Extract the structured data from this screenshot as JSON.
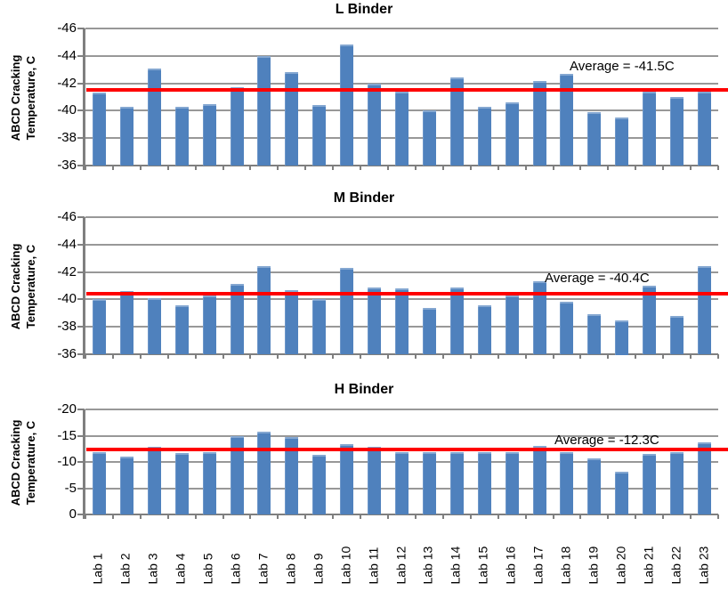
{
  "colors": {
    "bar": "#4F81BD",
    "average_line": "#FF0000",
    "gridline": "#989898",
    "axis": "#7F7F7F",
    "text": "#000000",
    "background": "#FFFFFF"
  },
  "y_axis_label": {
    "line1": "ABCD Cracking",
    "line2": "Temperature, C"
  },
  "categories": [
    "Lab 1",
    "Lab 2",
    "Lab 3",
    "Lab 4",
    "Lab 5",
    "Lab 6",
    "Lab 7",
    "Lab 8",
    "Lab 9",
    "Lab 10",
    "Lab 11",
    "Lab 12",
    "Lab 13",
    "Lab 14",
    "Lab 15",
    "Lab 16",
    "Lab 17",
    "Lab 18",
    "Lab 19",
    "Lab 20",
    "Lab 21",
    "Lab 22",
    "Lab 23"
  ],
  "chart_data": [
    {
      "type": "bar",
      "title": "L Binder",
      "ylabel": "ABCD Cracking Temperature, C",
      "ylim": [
        -46,
        -36
      ],
      "axis_note": "y axis inverted: -46 at top, -36 at bottom; bars grow upward from -36 baseline",
      "yticks": [
        -46,
        -44,
        -42,
        -40,
        -38,
        -36
      ],
      "grid": true,
      "legend": "none",
      "average_value": -41.5,
      "average_label": "Average = -41.5C",
      "categories": [
        "Lab 1",
        "Lab 2",
        "Lab 3",
        "Lab 4",
        "Lab 5",
        "Lab 6",
        "Lab 7",
        "Lab 8",
        "Lab 9",
        "Lab 10",
        "Lab 11",
        "Lab 12",
        "Lab 13",
        "Lab 14",
        "Lab 15",
        "Lab 16",
        "Lab 17",
        "Lab 18",
        "Lab 19",
        "Lab 20",
        "Lab 21",
        "Lab 22",
        "Lab 23"
      ],
      "values": [
        -41.3,
        -40.3,
        -43.1,
        -40.3,
        -40.5,
        -41.7,
        -44.0,
        -42.8,
        -40.4,
        -44.8,
        -42.0,
        -41.4,
        -40.0,
        -42.4,
        -40.3,
        -40.6,
        -42.2,
        -42.7,
        -39.9,
        -39.5,
        -41.4,
        -41.0,
        -41.4
      ]
    },
    {
      "type": "bar",
      "title": "M Binder",
      "ylabel": "ABCD Cracking Temperature, C",
      "ylim": [
        -46,
        -36
      ],
      "axis_note": "y axis inverted: -46 at top, -36 at bottom; bars grow upward from -36 baseline",
      "yticks": [
        -46,
        -44,
        -42,
        -40,
        -38,
        -36
      ],
      "grid": true,
      "legend": "none",
      "average_value": -40.4,
      "average_label": "Average = -40.4C",
      "categories": [
        "Lab 1",
        "Lab 2",
        "Lab 3",
        "Lab 4",
        "Lab 5",
        "Lab 6",
        "Lab 7",
        "Lab 8",
        "Lab 9",
        "Lab 10",
        "Lab 11",
        "Lab 12",
        "Lab 13",
        "Lab 14",
        "Lab 15",
        "Lab 16",
        "Lab 17",
        "Lab 18",
        "Lab 19",
        "Lab 20",
        "Lab 21",
        "Lab 22",
        "Lab 23"
      ],
      "values": [
        -40.0,
        -40.6,
        -40.1,
        -39.6,
        -40.3,
        -41.1,
        -42.4,
        -40.7,
        -40.0,
        -42.3,
        -40.9,
        -40.8,
        -39.4,
        -40.9,
        -39.6,
        -40.3,
        -41.3,
        -39.8,
        -38.9,
        -38.5,
        -41.0,
        -38.8,
        -42.4
      ]
    },
    {
      "type": "bar",
      "title": "H Binder",
      "ylabel": "ABCD Cracking Temperature, C",
      "ylim": [
        -20,
        0
      ],
      "axis_note": "y axis inverted: -20 at top, 0 at bottom; bars grow upward from 0 baseline",
      "yticks": [
        -20,
        -15,
        -10,
        -5,
        0
      ],
      "grid": true,
      "legend": "none",
      "average_value": -12.3,
      "average_label": "Average = -12.3C",
      "categories": [
        "Lab 1",
        "Lab 2",
        "Lab 3",
        "Lab 4",
        "Lab 5",
        "Lab 6",
        "Lab 7",
        "Lab 8",
        "Lab 9",
        "Lab 10",
        "Lab 11",
        "Lab 12",
        "Lab 13",
        "Lab 14",
        "Lab 15",
        "Lab 16",
        "Lab 17",
        "Lab 18",
        "Lab 19",
        "Lab 20",
        "Lab 21",
        "Lab 22",
        "Lab 23"
      ],
      "values": [
        -11.8,
        -11.0,
        -12.9,
        -11.7,
        -11.9,
        -14.9,
        -15.8,
        -14.7,
        -11.4,
        -13.4,
        -12.9,
        -11.9,
        -11.9,
        -11.8,
        -11.9,
        -11.9,
        -13.1,
        -11.8,
        -10.6,
        -8.1,
        -11.6,
        -11.9,
        -13.7
      ]
    }
  ]
}
